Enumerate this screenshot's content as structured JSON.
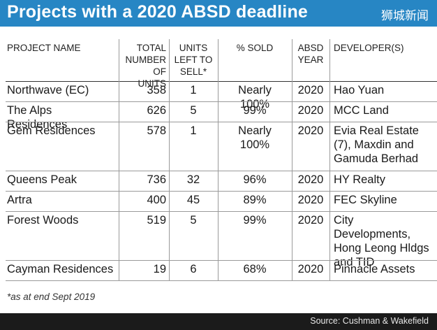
{
  "title": "Projects with a 2020 ABSD deadline",
  "brand": "狮城新闻",
  "headers": {
    "project": "PROJECT NAME",
    "total": "TOTAL NUMBER OF UNITS",
    "left": "UNITS LEFT TO SELL*",
    "sold": "% SOLD",
    "absd": "ABSD YEAR",
    "developer": "DEVELOPER(S)"
  },
  "rows": [
    {
      "project": "Northwave (EC)",
      "total": "358",
      "left": "1",
      "sold": "Nearly 100%",
      "absd": "2020",
      "developer": "Hao Yuan"
    },
    {
      "project": "The Alps Residences",
      "total": "626",
      "left": "5",
      "sold": "99%",
      "absd": "2020",
      "developer": "MCC Land"
    },
    {
      "project": "Gem Residences",
      "total": "578",
      "left": "1",
      "sold": "Nearly 100%",
      "absd": "2020",
      "developer": "Evia Real Estate (7), Maxdin and Gamuda Berhad"
    },
    {
      "project": "Queens Peak",
      "total": "736",
      "left": "32",
      "sold": "96%",
      "absd": "2020",
      "developer": "HY Realty"
    },
    {
      "project": "Artra",
      "total": "400",
      "left": "45",
      "sold": "89%",
      "absd": "2020",
      "developer": "FEC Skyline"
    },
    {
      "project": "Forest Woods",
      "total": "519",
      "left": "5",
      "sold": "99%",
      "absd": "2020",
      "developer": "City Developments, Hong Leong Hldgs and TID"
    },
    {
      "project": "Cayman Residences",
      "total": "19",
      "left": "6",
      "sold": "68%",
      "absd": "2020",
      "developer": "Pinnacle Assets"
    }
  ],
  "footnote": "*as at end Sept 2019",
  "source": "Source: Cushman & Wakefield"
}
